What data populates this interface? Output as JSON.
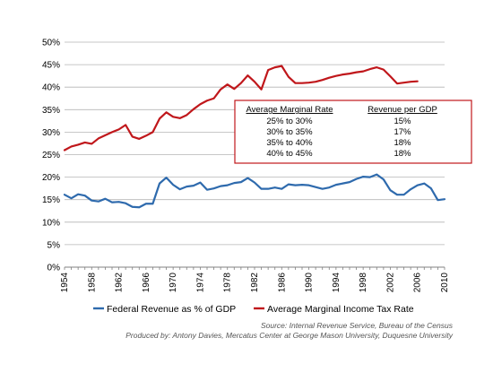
{
  "chart_data": {
    "type": "line",
    "title": "",
    "xlabel": "",
    "ylabel": "",
    "xlim": [
      1954,
      2010
    ],
    "ylim": [
      0,
      50
    ],
    "x_ticks": [
      "1954",
      "1958",
      "1962",
      "1966",
      "1970",
      "1974",
      "1978",
      "1982",
      "1986",
      "1990",
      "1994",
      "1998",
      "2002",
      "2006",
      "2010"
    ],
    "y_ticks": [
      "0%",
      "5%",
      "10%",
      "15%",
      "20%",
      "25%",
      "30%",
      "35%",
      "40%",
      "45%",
      "50%"
    ],
    "grid": "horizontal",
    "legend_position": "bottom",
    "series": [
      {
        "name": "Federal Revenue as % of GDP",
        "color": "#2e6aad",
        "x": [
          1954,
          1955,
          1956,
          1957,
          1958,
          1959,
          1960,
          1961,
          1962,
          1963,
          1964,
          1965,
          1966,
          1967,
          1968,
          1969,
          1970,
          1971,
          1972,
          1973,
          1974,
          1975,
          1976,
          1977,
          1978,
          1979,
          1980,
          1981,
          1982,
          1983,
          1984,
          1985,
          1986,
          1987,
          1988,
          1989,
          1990,
          1991,
          1992,
          1993,
          1994,
          1995,
          1996,
          1997,
          1998,
          1999,
          2000,
          2001,
          2002,
          2003,
          2004,
          2005,
          2006,
          2007,
          2008,
          2009,
          2010
        ],
        "values": [
          16.1,
          15.3,
          16.2,
          15.9,
          14.8,
          14.6,
          15.2,
          14.4,
          14.5,
          14.2,
          13.4,
          13.3,
          14.1,
          14.1,
          18.6,
          19.9,
          18.3,
          17.3,
          17.9,
          18.1,
          18.8,
          17.2,
          17.5,
          18.0,
          18.2,
          18.7,
          18.9,
          19.8,
          18.8,
          17.4,
          17.4,
          17.7,
          17.4,
          18.4,
          18.2,
          18.3,
          18.2,
          17.8,
          17.4,
          17.7,
          18.3,
          18.6,
          18.9,
          19.6,
          20.1,
          20.0,
          20.6,
          19.5,
          17.1,
          16.1,
          16.1,
          17.3,
          18.2,
          18.6,
          17.5,
          14.9,
          15.1
        ]
      },
      {
        "name": "Average Marginal Income Tax Rate",
        "color": "#c0171b",
        "x": [
          1954,
          1955,
          1956,
          1957,
          1958,
          1959,
          1960,
          1961,
          1962,
          1963,
          1964,
          1965,
          1966,
          1967,
          1968,
          1969,
          1970,
          1971,
          1972,
          1973,
          1974,
          1975,
          1976,
          1977,
          1978,
          1979,
          1980,
          1981,
          1982,
          1983,
          1984,
          1985,
          1986,
          1987,
          1988,
          1989,
          1990,
          1991,
          1992,
          1993,
          1994,
          1995,
          1996,
          1997,
          1998,
          1999,
          2000,
          2001,
          2002,
          2003,
          2004,
          2005,
          2006
        ],
        "values": [
          26.0,
          26.8,
          27.2,
          27.7,
          27.4,
          28.6,
          29.3,
          30.0,
          30.6,
          31.6,
          29.0,
          28.5,
          29.2,
          30.0,
          33.0,
          34.4,
          33.4,
          33.1,
          33.8,
          35.1,
          36.2,
          37.0,
          37.5,
          39.5,
          40.6,
          39.6,
          40.9,
          42.6,
          41.2,
          39.5,
          43.8,
          44.4,
          44.7,
          42.3,
          40.9,
          40.9,
          41.0,
          41.2,
          41.6,
          42.1,
          42.5,
          42.8,
          43.0,
          43.3,
          43.5,
          44.0,
          44.4,
          43.9,
          42.4,
          40.8,
          41.0,
          41.2,
          41.3
        ]
      }
    ],
    "table": {
      "headers": [
        "Average Marginal Rate",
        "Revenue per GDP"
      ],
      "rows": [
        [
          "25% to 30%",
          "15%"
        ],
        [
          "30% to 35%",
          "17%"
        ],
        [
          "35% to 40%",
          "18%"
        ],
        [
          "40% to 45%",
          "18%"
        ]
      ]
    }
  },
  "source": {
    "line1": "Source: Internal Revenue Service, Bureau of the Census",
    "line2": "Produced by: Antony Davies, Mercatus Center at George Mason University, Duquesne University"
  }
}
